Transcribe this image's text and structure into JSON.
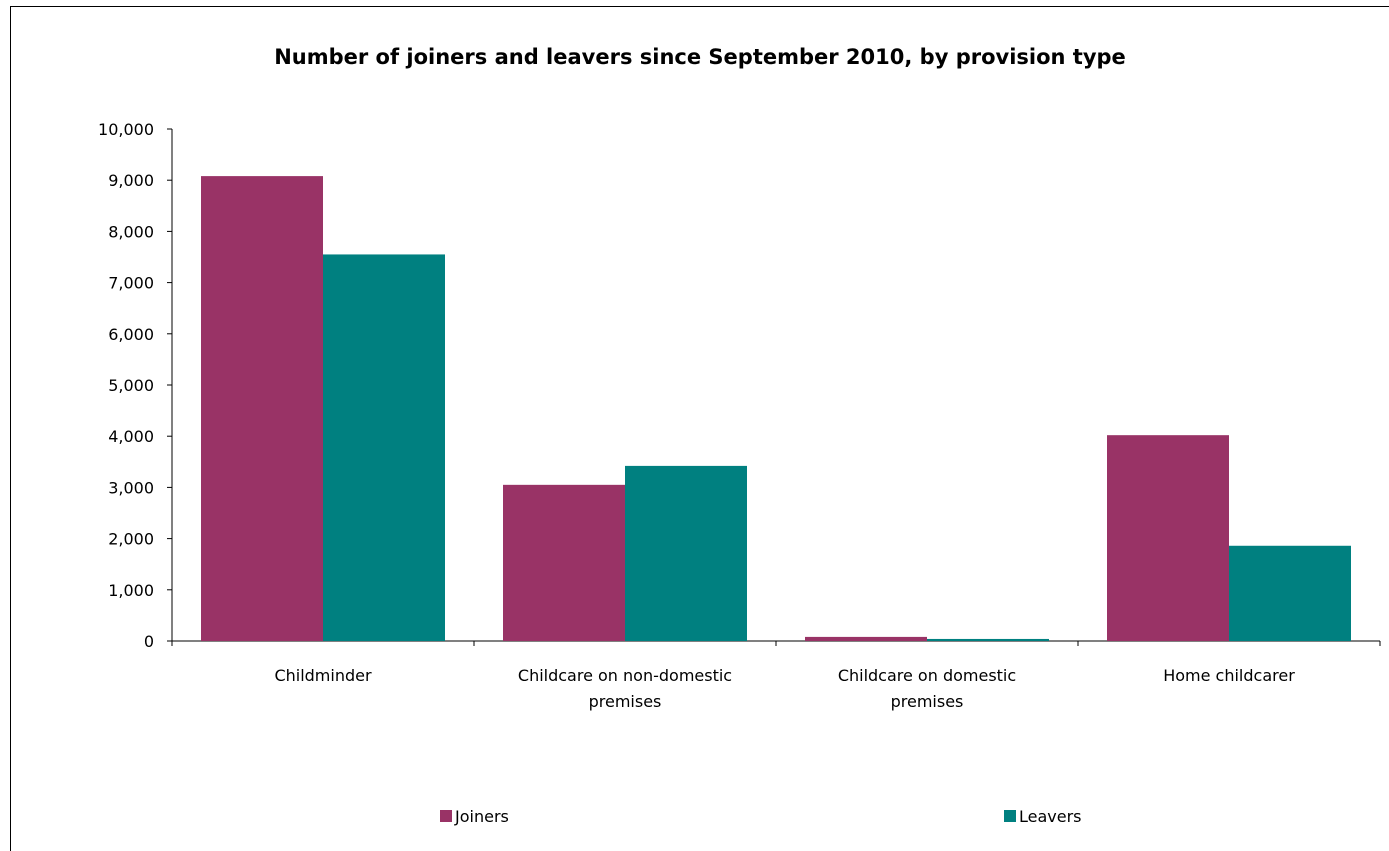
{
  "chart_data": {
    "type": "bar",
    "title": "Number of joiners and leavers since September 2010, by provision type",
    "xlabel": "",
    "ylabel": "",
    "categories": [
      [
        "Childminder"
      ],
      [
        "Childcare on non-domestic",
        "premises"
      ],
      [
        "Childcare on domestic",
        "premises"
      ],
      [
        "Home childcarer"
      ]
    ],
    "series": [
      {
        "name": "Joiners",
        "color": "#993366",
        "values": [
          9080,
          3050,
          80,
          4020
        ]
      },
      {
        "name": "Leavers",
        "color": "#008080",
        "values": [
          7550,
          3420,
          40,
          1860
        ]
      }
    ],
    "ylim": [
      0,
      10000
    ],
    "yticks": [
      "0",
      "1,000",
      "2,000",
      "3,000",
      "4,000",
      "5,000",
      "6,000",
      "7,000",
      "8,000",
      "9,000",
      "10,000"
    ],
    "grid": false,
    "legend": "bottom"
  }
}
